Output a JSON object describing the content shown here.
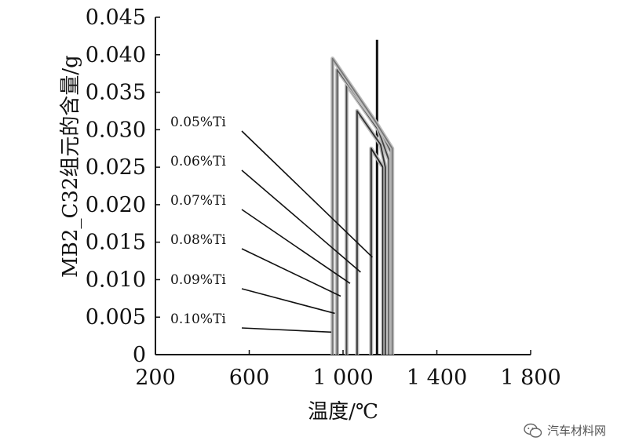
{
  "chart_data": {
    "type": "line",
    "xlabel": "温度/℃",
    "ylabel": "MB2_C32组元的含量/g",
    "xlim": [
      200,
      1800
    ],
    "ylim": [
      0,
      0.045
    ],
    "x_ticks": [
      200,
      600,
      1000,
      1400,
      1800
    ],
    "x_tick_labels": [
      "200",
      "600",
      "1 000",
      "1 400",
      "1 800"
    ],
    "y_ticks": [
      0,
      0.005,
      0.01,
      0.015,
      0.02,
      0.025,
      0.03,
      0.035,
      0.04,
      0.045
    ],
    "y_tick_labels": [
      "0",
      "0.005",
      "0.010",
      "0.015",
      "0.020",
      "0.025",
      "0.030",
      "0.035",
      "0.040",
      "0.045"
    ],
    "series": [
      {
        "name": "0.05%Ti",
        "points": [
          [
            1145,
            0
          ],
          [
            1145,
            0.042
          ],
          [
            1145,
            0
          ]
        ]
      },
      {
        "name": "0.06%Ti",
        "points": [
          [
            1120,
            0
          ],
          [
            1120,
            0.0275
          ],
          [
            1170,
            0.025
          ],
          [
            1170,
            0
          ]
        ]
      },
      {
        "name": "0.07%Ti",
        "points": [
          [
            1060,
            0
          ],
          [
            1060,
            0.0325
          ],
          [
            1160,
            0.028
          ],
          [
            1180,
            0.025
          ],
          [
            1180,
            0
          ]
        ]
      },
      {
        "name": "0.08%Ti",
        "points": [
          [
            1015,
            0
          ],
          [
            1015,
            0.036
          ],
          [
            1150,
            0.03
          ],
          [
            1195,
            0.026
          ],
          [
            1195,
            0
          ]
        ]
      },
      {
        "name": "0.09%Ti",
        "points": [
          [
            975,
            0
          ],
          [
            975,
            0.038
          ],
          [
            1150,
            0.0305
          ],
          [
            1205,
            0.027
          ],
          [
            1205,
            0
          ]
        ]
      },
      {
        "name": "0.10%Ti",
        "points": [
          [
            955,
            0
          ],
          [
            955,
            0.0395
          ],
          [
            1140,
            0.031
          ],
          [
            1210,
            0.0275
          ],
          [
            1210,
            0
          ]
        ]
      }
    ],
    "annotations": [
      {
        "text": "0.05%Ti",
        "target": [
          1125,
          0.013
        ]
      },
      {
        "text": "0.06%Ti",
        "target": [
          1075,
          0.011
        ]
      },
      {
        "text": "0.07%Ti",
        "target": [
          1030,
          0.0095
        ]
      },
      {
        "text": "0.08%Ti",
        "target": [
          990,
          0.0078
        ]
      },
      {
        "text": "0.09%Ti",
        "target": [
          965,
          0.0055
        ]
      },
      {
        "text": "0.10%Ti",
        "target": [
          950,
          0.003
        ]
      }
    ],
    "grid": false
  },
  "watermark": {
    "text": "汽车材料网",
    "icon": "wechat-icon"
  }
}
